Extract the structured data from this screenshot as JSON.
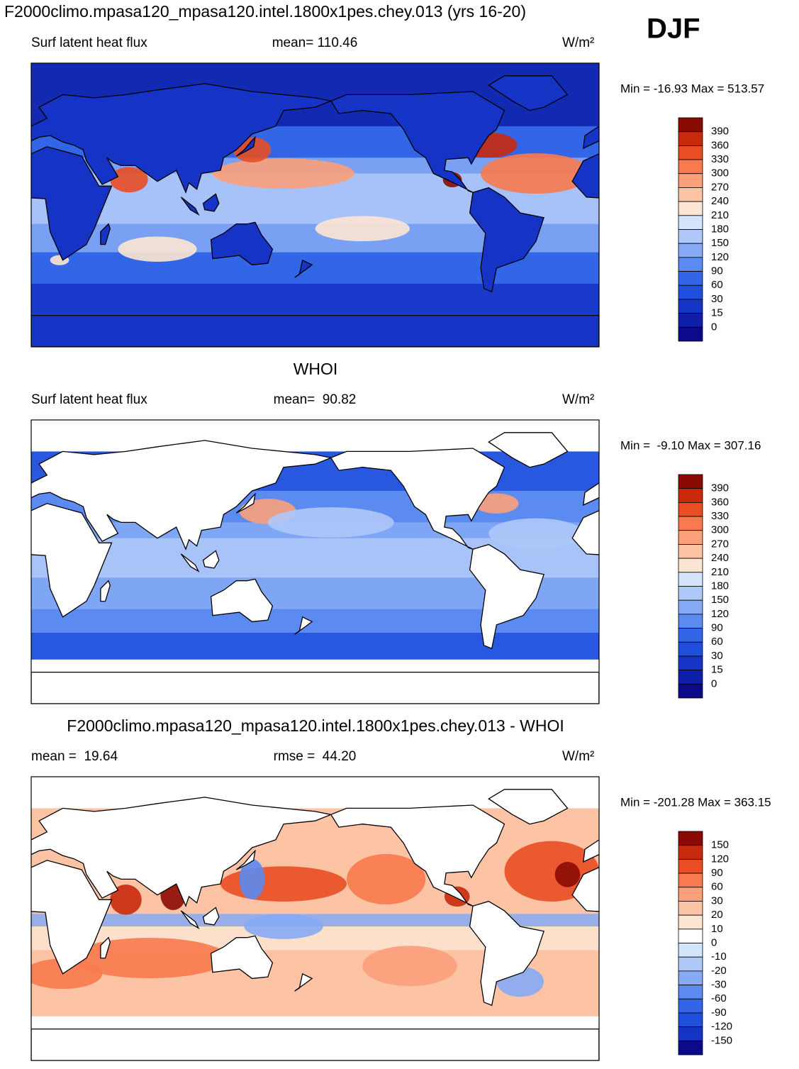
{
  "header": {
    "title": "F2000climo.mpasa120_mpasa120.intel.1800x1pes.chey.013 (yrs 16-20)",
    "season": "DJF"
  },
  "panels": [
    {
      "left_label": "Surf latent heat flux",
      "center_label": "mean= 110.46",
      "units": "W/m²",
      "range_text": "Min = -16.93 Max = 513.57",
      "colorbar": {
        "levels": [
          390,
          360,
          330,
          300,
          270,
          240,
          210,
          180,
          150,
          120,
          90,
          60,
          30,
          15,
          0
        ],
        "colors": [
          "#8c0a04",
          "#c82a0c",
          "#e84e22",
          "#f87a4e",
          "#fba07a",
          "#fcc4a4",
          "#fde5d3",
          "#d4e4fb",
          "#aec8f8",
          "#86aaf5",
          "#5b8af0",
          "#3366e6",
          "#1f4fdc",
          "#1533c4",
          "#0d1fa8",
          "#0a0a8a"
        ]
      }
    },
    {
      "title": "WHOI",
      "left_label": "Surf latent heat flux",
      "center_label": "mean=  90.82",
      "units": "W/m²",
      "range_text": "Min =  -9.10 Max = 307.16",
      "colorbar": {
        "levels": [
          390,
          360,
          330,
          300,
          270,
          240,
          210,
          180,
          150,
          120,
          90,
          60,
          30,
          15,
          0
        ],
        "colors": [
          "#8c0a04",
          "#c82a0c",
          "#e84e22",
          "#f87a4e",
          "#fba07a",
          "#fcc4a4",
          "#fde5d3",
          "#d4e4fb",
          "#aec8f8",
          "#86aaf5",
          "#5b8af0",
          "#3366e6",
          "#1f4fdc",
          "#1533c4",
          "#0d1fa8",
          "#0a0a8a"
        ]
      }
    },
    {
      "title": "F2000climo.mpasa120_mpasa120.intel.1800x1pes.chey.013 - WHOI",
      "left_label": "mean =  19.64",
      "center_label": "rmse =  44.20",
      "units": "W/m²",
      "range_text": "Min = -201.28 Max = 363.15",
      "colorbar": {
        "levels": [
          150,
          120,
          90,
          60,
          30,
          20,
          10,
          0,
          -10,
          -20,
          -30,
          -60,
          -90,
          -120,
          -150
        ],
        "colors": [
          "#8c0a04",
          "#c82a0c",
          "#e84e22",
          "#f87a4e",
          "#fba07a",
          "#fcc4a4",
          "#fde5d3",
          "#ffffff",
          "#d4e4fb",
          "#aec8f8",
          "#86aaf5",
          "#5b8af0",
          "#3366e6",
          "#1f4fdc",
          "#1533c4",
          "#0a0a8a"
        ]
      }
    }
  ]
}
